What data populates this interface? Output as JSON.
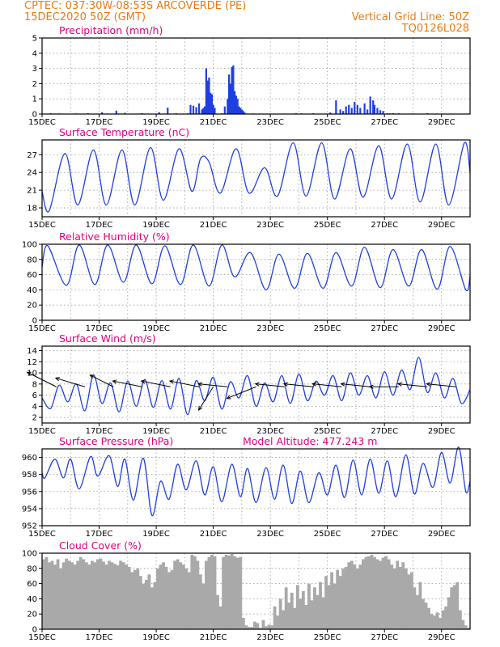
{
  "header": {
    "line1": "CPTEC:   037:30W-08:53S   ARCOVERDE (PE)",
    "line2": "15DEC2020 50Z (GMT)",
    "grid_note": "Vertical Grid Line: 50Z",
    "model_code": "TQ0126L028"
  },
  "colors": {
    "header": "#e87a16",
    "title": "#e0007a",
    "series": "#1f3fe0",
    "cloud": "#a9a9a9"
  },
  "chart_data": [
    {
      "type": "bar",
      "title": "Precipitation (mm/h)",
      "ylim": [
        0,
        5
      ],
      "yticks": [
        0,
        1,
        2,
        3,
        4,
        5
      ],
      "xlim": [
        0,
        15
      ],
      "xticks": [
        0,
        2,
        4,
        6,
        8,
        10,
        12,
        14
      ],
      "xticklabels": [
        "15DEC",
        "17DEC",
        "19DEC",
        "21DEC",
        "23DEC",
        "25DEC",
        "27DEC",
        "29DEC"
      ],
      "grid": true,
      "series": [
        {
          "x": [
            0.3,
            0.6,
            1.2,
            1.6,
            2.1,
            2.6,
            2.9,
            3.5,
            4.1,
            4.4,
            4.7,
            5.1,
            5.2,
            5.3,
            5.4,
            5.5,
            5.6,
            5.65,
            5.7,
            5.75,
            5.8,
            5.85,
            5.9,
            5.95,
            6.0,
            6.05,
            6.3,
            6.4,
            6.5,
            6.55,
            6.6,
            6.65,
            6.7,
            6.75,
            6.8,
            6.85,
            6.9,
            6.95,
            7.0,
            7.05,
            7.1,
            7.4,
            8.9,
            9.1,
            9.5,
            10.1,
            10.3,
            10.45,
            10.55,
            10.65,
            10.75,
            10.85,
            10.95,
            11.05,
            11.15,
            11.3,
            11.4,
            11.5,
            11.6,
            11.65,
            11.75,
            11.85,
            11.95,
            12.1,
            12.2,
            12.3,
            12.5,
            13.0,
            13.5
          ],
          "values": [
            0.05,
            0.04,
            0.04,
            0.05,
            0.12,
            0.22,
            0.08,
            0.06,
            0.12,
            0.42,
            0.05,
            0.04,
            0.6,
            0.55,
            0.45,
            0.7,
            0.3,
            0.4,
            0.5,
            3.0,
            2.2,
            2.4,
            1.4,
            1.3,
            0.6,
            0.4,
            0.05,
            0.5,
            1.0,
            2.6,
            2.0,
            3.1,
            3.2,
            1.5,
            1.2,
            1.0,
            0.5,
            0.4,
            0.3,
            0.2,
            0.1,
            0.04,
            0.05,
            0.04,
            0.05,
            0.1,
            0.9,
            0.3,
            0.2,
            0.5,
            0.6,
            0.4,
            0.8,
            0.6,
            0.4,
            0.7,
            0.3,
            1.15,
            0.9,
            0.6,
            0.4,
            0.25,
            0.2,
            0.05,
            0.04,
            0.06,
            0.05,
            0.04,
            0.05
          ]
        }
      ]
    },
    {
      "type": "line",
      "title": "Surface Temperature (nC)",
      "ylim": [
        16.5,
        29.5
      ],
      "yticks": [
        18,
        21,
        24,
        27
      ],
      "xlim": [
        0,
        15
      ],
      "xticks": [
        0,
        2,
        4,
        6,
        8,
        10,
        12,
        14
      ],
      "xticklabels": [
        "15DEC",
        "17DEC",
        "19DEC",
        "21DEC",
        "23DEC",
        "25DEC",
        "27DEC",
        "29DEC"
      ],
      "grid": true,
      "series": [
        {
          "x": [
            0.0,
            0.25,
            0.8,
            1.25,
            1.8,
            2.25,
            2.8,
            3.25,
            3.8,
            4.25,
            4.8,
            5.25,
            5.55,
            5.85,
            6.25,
            6.8,
            7.25,
            7.8,
            8.25,
            8.8,
            9.25,
            9.8,
            10.25,
            10.8,
            11.25,
            11.8,
            12.25,
            12.8,
            13.25,
            13.8,
            14.25,
            14.8,
            15.0
          ],
          "values": [
            20.8,
            17.5,
            27.2,
            18.5,
            27.8,
            18.5,
            27.8,
            18.5,
            28.2,
            19.3,
            28.0,
            20.8,
            26.3,
            25.8,
            20.5,
            28.0,
            20.5,
            24.8,
            20.0,
            29.0,
            20.0,
            29.0,
            19.5,
            28.0,
            19.8,
            28.5,
            19.5,
            28.8,
            19.0,
            28.8,
            18.5,
            29.0,
            24.0
          ]
        }
      ]
    },
    {
      "type": "line",
      "title": "Relative Humidity (%)",
      "ylim": [
        0,
        100
      ],
      "yticks": [
        0,
        20,
        40,
        60,
        80,
        100
      ],
      "xlim": [
        0,
        15
      ],
      "xticks": [
        0,
        2,
        4,
        6,
        8,
        10,
        12,
        14
      ],
      "xticklabels": [
        "15DEC",
        "17DEC",
        "19DEC",
        "21DEC",
        "23DEC",
        "25DEC",
        "27DEC",
        "29DEC"
      ],
      "grid": true,
      "series": [
        {
          "x": [
            0.0,
            0.2,
            0.85,
            1.3,
            1.85,
            2.3,
            2.85,
            3.3,
            3.85,
            4.3,
            4.85,
            5.3,
            5.85,
            6.3,
            6.75,
            7.3,
            7.85,
            8.3,
            8.85,
            9.3,
            9.85,
            10.3,
            10.85,
            11.3,
            11.85,
            12.3,
            12.85,
            13.3,
            13.85,
            14.3,
            14.85,
            15.0
          ],
          "values": [
            70,
            98,
            46,
            99,
            47,
            99,
            50,
            99,
            48,
            98,
            47,
            99,
            45,
            99,
            57,
            89,
            40,
            87,
            42,
            88,
            42,
            89,
            45,
            96,
            43,
            93,
            45,
            93,
            41,
            97,
            40,
            58
          ]
        }
      ]
    },
    {
      "type": "line",
      "title": "Surface Wind (m/s)",
      "ylim": [
        1,
        14.8
      ],
      "yticks": [
        2,
        4,
        6,
        8,
        10,
        12,
        14
      ],
      "xlim": [
        0,
        15
      ],
      "xticks": [
        0,
        2,
        4,
        6,
        8,
        10,
        12,
        14
      ],
      "xticklabels": [
        "15DEC",
        "17DEC",
        "19DEC",
        "21DEC",
        "23DEC",
        "25DEC",
        "27DEC",
        "29DEC"
      ],
      "grid": true,
      "series": [
        {
          "x": [
            0.0,
            0.3,
            0.6,
            0.9,
            1.2,
            1.5,
            1.8,
            2.1,
            2.4,
            2.7,
            3.0,
            3.3,
            3.6,
            3.9,
            4.2,
            4.5,
            4.8,
            5.1,
            5.4,
            5.7,
            6.0,
            6.3,
            6.6,
            6.9,
            7.2,
            7.5,
            7.8,
            8.1,
            8.4,
            8.7,
            9.0,
            9.3,
            9.6,
            9.9,
            10.2,
            10.5,
            10.8,
            11.1,
            11.4,
            11.7,
            12.0,
            12.3,
            12.6,
            12.9,
            13.2,
            13.5,
            13.8,
            14.1,
            14.4,
            14.7,
            15.0
          ],
          "values": [
            5.5,
            3.6,
            7.8,
            4.8,
            8.0,
            3.2,
            9.6,
            4.5,
            8.2,
            3.0,
            8.5,
            4.0,
            8.8,
            3.8,
            8.6,
            3.5,
            9.0,
            2.5,
            8.6,
            5.0,
            9.2,
            3.5,
            8.4,
            5.5,
            9.5,
            4.0,
            8.2,
            4.8,
            9.5,
            4.5,
            9.8,
            5.0,
            8.5,
            6.0,
            9.5,
            5.0,
            10.0,
            6.0,
            9.5,
            5.5,
            10.2,
            6.0,
            10.5,
            7.0,
            12.8,
            6.5,
            10.0,
            5.5,
            9.0,
            4.5,
            7.0
          ]
        }
      ],
      "barbs": [
        {
          "x": 0.5,
          "u": -1.0,
          "v": 0.5
        },
        {
          "x": 1.5,
          "u": -1.0,
          "v": 0.3
        },
        {
          "x": 2.5,
          "u": -0.8,
          "v": 0.4
        },
        {
          "x": 3.5,
          "u": -1.0,
          "v": 0.2
        },
        {
          "x": 4.5,
          "u": -1.0,
          "v": 0.2
        },
        {
          "x": 5.5,
          "u": -1.0,
          "v": 0.2
        },
        {
          "x": 6.0,
          "u": -0.5,
          "v": -0.8
        },
        {
          "x": 6.5,
          "u": -1.0,
          "v": 0.1
        },
        {
          "x": 7.5,
          "u": -1.0,
          "v": -0.4
        },
        {
          "x": 8.5,
          "u": -1.0,
          "v": 0.1
        },
        {
          "x": 9.5,
          "u": -1.0,
          "v": 0.1
        },
        {
          "x": 10.5,
          "u": -1.0,
          "v": 0.1
        },
        {
          "x": 11.5,
          "u": -1.0,
          "v": 0.1
        },
        {
          "x": 12.5,
          "u": -1.0,
          "v": 0.0
        },
        {
          "x": 13.5,
          "u": -1.0,
          "v": 0.1
        },
        {
          "x": 14.5,
          "u": -1.0,
          "v": 0.1
        }
      ]
    },
    {
      "type": "line",
      "title": "Surface Pressure (hPa)",
      "note": "Model Altitude: 477.243  m",
      "ylim": [
        952,
        961
      ],
      "yticks": [
        952,
        954,
        956,
        958,
        960
      ],
      "xlim": [
        0,
        15
      ],
      "xticks": [
        0,
        2,
        4,
        6,
        8,
        10,
        12,
        14
      ],
      "xticklabels": [
        "15DEC",
        "17DEC",
        "19DEC",
        "21DEC",
        "23DEC",
        "25DEC",
        "27DEC",
        "29DEC"
      ],
      "grid": true,
      "series": [
        {
          "x": [
            0.0,
            0.1,
            0.45,
            0.75,
            1.0,
            1.3,
            1.7,
            1.95,
            2.35,
            2.65,
            2.9,
            3.2,
            3.55,
            3.85,
            4.15,
            4.45,
            4.75,
            5.05,
            5.4,
            5.7,
            6.0,
            6.3,
            6.65,
            6.95,
            7.2,
            7.5,
            7.85,
            8.15,
            8.45,
            8.75,
            9.05,
            9.35,
            9.7,
            10.0,
            10.3,
            10.6,
            10.9,
            11.2,
            11.5,
            11.8,
            12.1,
            12.4,
            12.75,
            13.05,
            13.35,
            13.7,
            14.0,
            14.3,
            14.6,
            14.85,
            15.0
          ],
          "values": [
            958.2,
            957.6,
            959.8,
            957.6,
            959.8,
            956.3,
            960.1,
            957.8,
            960.2,
            956.6,
            959.8,
            955.0,
            959.9,
            953.2,
            957.2,
            955.1,
            959.2,
            956.2,
            959.6,
            955.6,
            958.9,
            954.8,
            959.2,
            955.4,
            958.7,
            954.7,
            958.8,
            955.1,
            959.1,
            954.6,
            958.4,
            954.7,
            958.2,
            955.6,
            959.1,
            955.3,
            959.7,
            955.6,
            959.8,
            955.8,
            959.6,
            955.4,
            960.3,
            955.7,
            959.3,
            956.5,
            960.6,
            957.0,
            961.2,
            956.0,
            957.2
          ]
        }
      ]
    },
    {
      "type": "area",
      "title": "Cloud Cover (%)",
      "ylim": [
        0,
        100
      ],
      "yticks": [
        0,
        20,
        40,
        60,
        80,
        100
      ],
      "xlim": [
        0,
        15
      ],
      "xticks": [
        0,
        2,
        4,
        6,
        8,
        10,
        12,
        14
      ],
      "xticklabels": [
        "15DEC",
        "17DEC",
        "19DEC",
        "21DEC",
        "23DEC",
        "25DEC",
        "27DEC",
        "29DEC"
      ],
      "grid": true,
      "series": [
        {
          "x": [
            0.0,
            0.1,
            0.2,
            0.3,
            0.4,
            0.5,
            0.6,
            0.7,
            0.8,
            0.9,
            1.0,
            1.1,
            1.2,
            1.3,
            1.4,
            1.5,
            1.6,
            1.7,
            1.8,
            1.9,
            2.0,
            2.1,
            2.2,
            2.3,
            2.4,
            2.5,
            2.6,
            2.7,
            2.8,
            2.9,
            3.0,
            3.1,
            3.2,
            3.3,
            3.4,
            3.5,
            3.6,
            3.7,
            3.8,
            3.9,
            4.0,
            4.1,
            4.2,
            4.3,
            4.4,
            4.5,
            4.6,
            4.7,
            4.8,
            4.9,
            5.0,
            5.1,
            5.2,
            5.3,
            5.4,
            5.5,
            5.6,
            5.7,
            5.8,
            5.9,
            6.0,
            6.1,
            6.2,
            6.3,
            6.4,
            6.5,
            6.6,
            6.7,
            6.8,
            6.9,
            7.0,
            7.1,
            7.2,
            7.3,
            7.4,
            7.5,
            7.6,
            7.7,
            7.8,
            7.9,
            8.0,
            8.1,
            8.2,
            8.3,
            8.4,
            8.5,
            8.6,
            8.7,
            8.8,
            8.9,
            9.0,
            9.1,
            9.2,
            9.3,
            9.4,
            9.5,
            9.6,
            9.7,
            9.8,
            9.9,
            10.0,
            10.1,
            10.2,
            10.3,
            10.4,
            10.5,
            10.6,
            10.7,
            10.8,
            10.9,
            11.0,
            11.1,
            11.2,
            11.3,
            11.4,
            11.5,
            11.6,
            11.7,
            11.8,
            11.9,
            12.0,
            12.1,
            12.2,
            12.3,
            12.4,
            12.5,
            12.6,
            12.7,
            12.8,
            12.9,
            13.0,
            13.1,
            13.2,
            13.3,
            13.4,
            13.5,
            13.6,
            13.7,
            13.8,
            13.9,
            14.0,
            14.1,
            14.2,
            14.3,
            14.4,
            14.5,
            14.6,
            14.7,
            14.8,
            14.9
          ],
          "values": [
            92,
            95,
            88,
            90,
            85,
            92,
            80,
            88,
            93,
            90,
            88,
            85,
            90,
            95,
            92,
            88,
            85,
            90,
            88,
            92,
            93,
            89,
            85,
            90,
            88,
            86,
            84,
            90,
            88,
            85,
            82,
            75,
            78,
            80,
            70,
            60,
            65,
            72,
            55,
            62,
            80,
            85,
            88,
            82,
            75,
            78,
            90,
            92,
            88,
            85,
            80,
            75,
            98,
            96,
            90,
            72,
            60,
            90,
            95,
            98,
            96,
            45,
            30,
            95,
            98,
            97,
            99,
            96,
            94,
            95,
            15,
            5,
            3,
            3,
            10,
            8,
            2,
            12,
            4,
            6,
            5,
            30,
            18,
            40,
            25,
            55,
            35,
            48,
            28,
            58,
            40,
            50,
            32,
            60,
            38,
            55,
            45,
            62,
            42,
            70,
            58,
            75,
            60,
            78,
            70,
            80,
            82,
            88,
            90,
            85,
            80,
            85,
            92,
            95,
            96,
            98,
            95,
            92,
            90,
            94,
            96,
            92,
            85,
            80,
            90,
            82,
            88,
            80,
            72,
            75,
            55,
            45,
            62,
            40,
            35,
            28,
            20,
            18,
            22,
            15,
            25,
            30,
            42,
            55,
            58,
            62,
            25,
            12,
            5,
            2
          ]
        }
      ]
    }
  ]
}
